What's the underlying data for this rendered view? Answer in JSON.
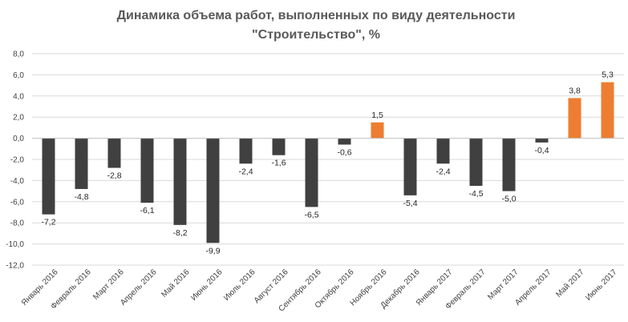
{
  "chart_data": {
    "type": "bar",
    "title_lines": [
      "Динамика объема работ, выполненных по виду деятельности",
      "\"Строительство\", %"
    ],
    "categories": [
      "Январь 2016",
      "Февраль 2016",
      "Март 2016",
      "Апрель 2016",
      "Май 2016",
      "Июнь 2016",
      "Июль 2016",
      "Август 2016",
      "Сентябрь 2016",
      "Октябрь 2016",
      "Ноябрь 2016",
      "Декабрь 2016",
      "Январь 2017",
      "Февраль 2017",
      "Март 2017",
      "Апрель 2017",
      "Май 2017",
      "Июнь 2017"
    ],
    "values": [
      -7.2,
      -4.8,
      -2.8,
      -6.1,
      -8.2,
      -9.9,
      -2.4,
      -1.6,
      -6.5,
      -0.6,
      1.5,
      -5.4,
      -2.4,
      -4.5,
      -5.0,
      -0.4,
      3.8,
      5.3
    ],
    "value_labels": [
      "-7,2",
      "-4,8",
      "-2,8",
      "-6,1",
      "-8,2",
      "-9,9",
      "-2,4",
      "-1,6",
      "-6,5",
      "-0,6",
      "1,5",
      "-5,4",
      "-2,4",
      "-4,5",
      "-5,0",
      "-0,4",
      "3,8",
      "5,3"
    ],
    "ylim": [
      -12,
      8
    ],
    "yticks": [
      -12,
      -10,
      -8,
      -6,
      -4,
      -2,
      0,
      2,
      4,
      6,
      8
    ],
    "ytick_labels": [
      "-12,0",
      "-10,0",
      "-8,0",
      "-6,0",
      "-4,0",
      "-2,0",
      "0,0",
      "2,0",
      "4,0",
      "6,0",
      "8,0"
    ],
    "grid": true,
    "colors": {
      "negative": "#404040",
      "positive": "#ED7D31",
      "grid": "#D9D9D9",
      "axis": "#BFBFBF"
    }
  }
}
